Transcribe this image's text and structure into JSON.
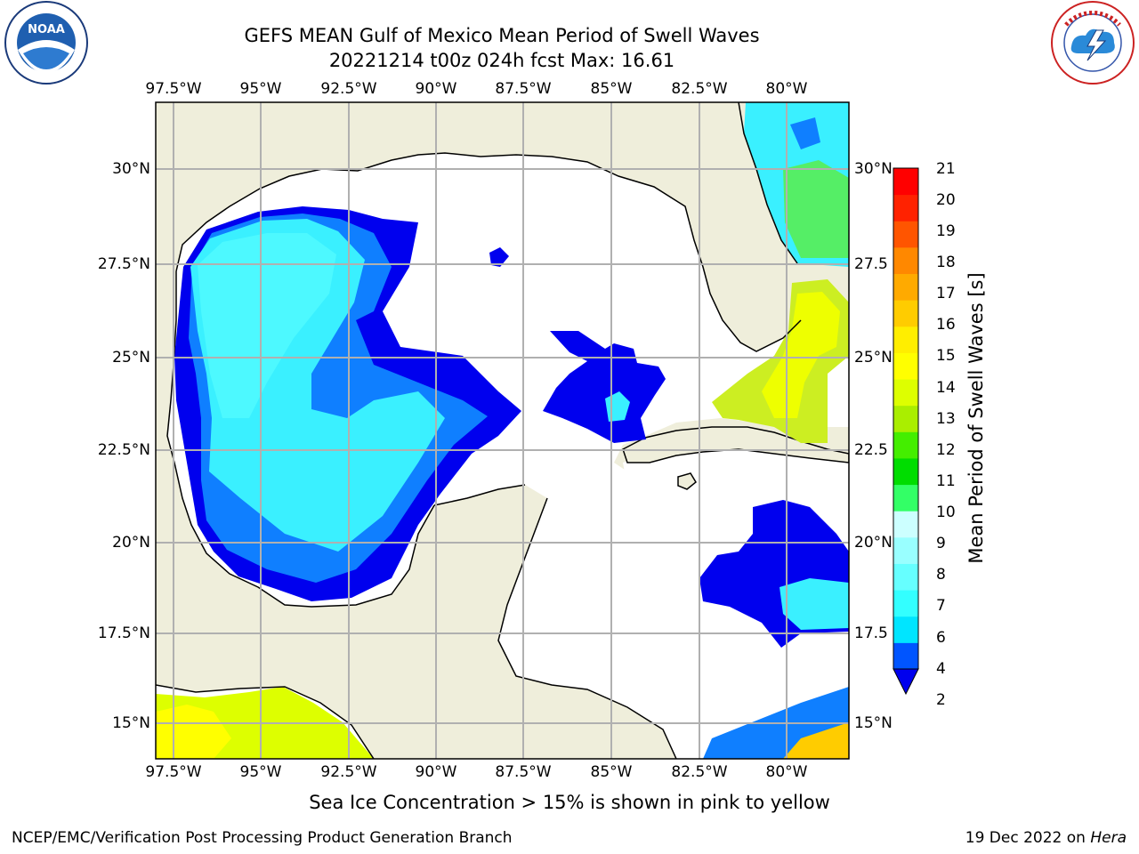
{
  "header": {
    "title_line1": "GEFS MEAN Gulf of Mexico Mean Period of Swell Waves",
    "title_line2": "20221214 t00z 024h fcst   Max: 16.61"
  },
  "logos": {
    "left_text": "NOAA",
    "left_ring_text": "NATIONAL OCEANIC AND ATMOSPHERIC ADMINISTRATION · U.S. DEPARTMENT OF COMMERCE",
    "right_ring_text": "NATIONAL WEATHER SERVICE"
  },
  "map": {
    "lon_labels": [
      "97.5°W",
      "95°W",
      "92.5°W",
      "90°W",
      "87.5°W",
      "85°W",
      "82.5°W",
      "80°W"
    ],
    "lat_labels": [
      "30°N",
      "27.5°N",
      "25°N",
      "22.5°N",
      "20°N",
      "17.5°N",
      "15°N"
    ],
    "lat_labels_right": [
      "30°N",
      "27.5",
      "25°N",
      "22.5",
      "20°N",
      "17.5",
      "15°N"
    ],
    "colors": {
      "land": "#efeedb",
      "ocean_low": "#ffffff",
      "grid": "#b0b0b0"
    }
  },
  "colorbar": {
    "label": "Mean Period of Swell Waves [s]",
    "ticks": [
      "21",
      "20",
      "19",
      "18",
      "17",
      "16",
      "15",
      "14",
      "13",
      "12",
      "11",
      "10",
      "9",
      "8",
      "7",
      "6",
      "4",
      "2"
    ],
    "colors": [
      "#0055ff",
      "#00e5ff",
      "#33ffff",
      "#66ffff",
      "#99ffff",
      "#ccffff",
      "#33ff66",
      "#00dd00",
      "#44ee00",
      "#aaee00",
      "#ddff00",
      "#ffff00",
      "#ffee00",
      "#ffcc00",
      "#ffaa00",
      "#ff8800",
      "#ff5500",
      "#ff2200",
      "#ff0000"
    ],
    "extend_color": "#0000ee"
  },
  "footer": {
    "note": "Sea Ice Concentration > 15% is shown in pink to yellow",
    "left": "NCEP/EMC/Verification Post Processing Product Generation Branch",
    "right_prefix": "19 Dec 2022 on ",
    "right_machine": "Hera"
  }
}
